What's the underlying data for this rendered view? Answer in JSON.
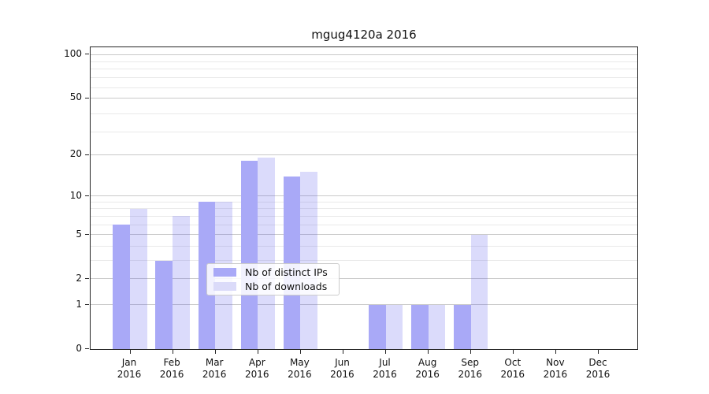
{
  "title": "mgug4120a 2016",
  "colors": {
    "distinct_ips": "#a9a9f7",
    "downloads_rgba": "rgba(85,85,238,0.21)",
    "downloads_hex": "#dbdbf9"
  },
  "legend": {
    "items": [
      {
        "label": "Nb of distinct IPs",
        "color_key": "distinct_ips"
      },
      {
        "label": "Nb of downloads",
        "color_key": "downloads"
      }
    ]
  },
  "chart_data": {
    "type": "bar",
    "title": "mgug4120a 2016",
    "categories": [
      "Jan",
      "Feb",
      "Mar",
      "Apr",
      "May",
      "Jun",
      "Jul",
      "Aug",
      "Sep",
      "Oct",
      "Nov",
      "Dec"
    ],
    "year": "2016",
    "series": [
      {
        "name": "Nb of distinct IPs",
        "values": [
          6,
          3,
          9,
          18,
          14,
          0,
          1,
          1,
          1,
          0,
          0,
          0
        ]
      },
      {
        "name": "Nb of downloads",
        "values": [
          8,
          7,
          9,
          19,
          15,
          0,
          1,
          1,
          5,
          0,
          0,
          0
        ]
      }
    ],
    "yticks": [
      0,
      1,
      2,
      5,
      10,
      20,
      50,
      100
    ],
    "ytick_labels": [
      "0",
      "1",
      "2",
      "5",
      "10",
      "20",
      "50",
      "100"
    ],
    "scale": "log10(value+1)",
    "ylim": [
      0,
      114
    ],
    "xlabel": "",
    "ylabel": "",
    "grid": "horizontal",
    "legend_position": "lower center"
  }
}
